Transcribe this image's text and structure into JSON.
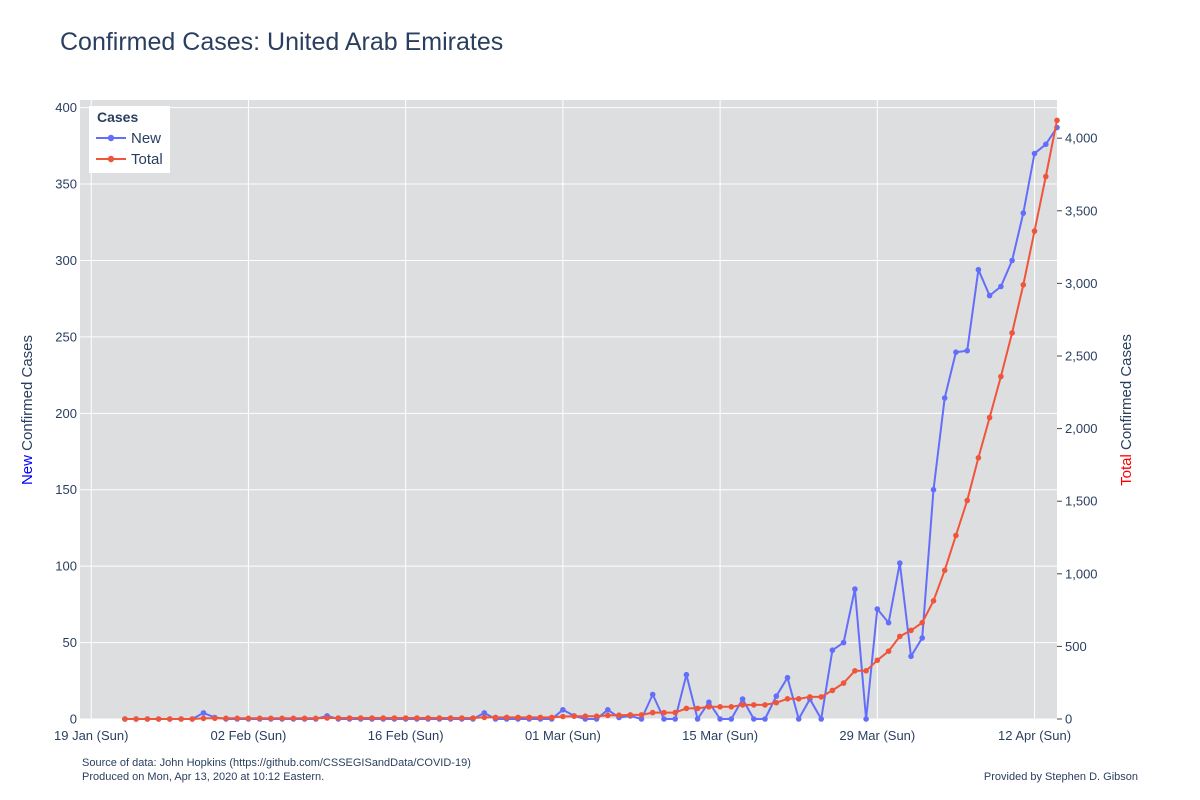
{
  "chart_data": {
    "type": "line",
    "title": "Confirmed Cases: United Arab Emirates",
    "x": [
      "2020-01-22",
      "2020-01-23",
      "2020-01-24",
      "2020-01-25",
      "2020-01-26",
      "2020-01-27",
      "2020-01-28",
      "2020-01-29",
      "2020-01-30",
      "2020-01-31",
      "2020-02-01",
      "2020-02-02",
      "2020-02-03",
      "2020-02-04",
      "2020-02-05",
      "2020-02-06",
      "2020-02-07",
      "2020-02-08",
      "2020-02-09",
      "2020-02-10",
      "2020-02-11",
      "2020-02-12",
      "2020-02-13",
      "2020-02-14",
      "2020-02-15",
      "2020-02-16",
      "2020-02-17",
      "2020-02-18",
      "2020-02-19",
      "2020-02-20",
      "2020-02-21",
      "2020-02-22",
      "2020-02-23",
      "2020-02-24",
      "2020-02-25",
      "2020-02-26",
      "2020-02-27",
      "2020-02-28",
      "2020-02-29",
      "2020-03-01",
      "2020-03-02",
      "2020-03-03",
      "2020-03-04",
      "2020-03-05",
      "2020-03-06",
      "2020-03-07",
      "2020-03-08",
      "2020-03-09",
      "2020-03-10",
      "2020-03-11",
      "2020-03-12",
      "2020-03-13",
      "2020-03-14",
      "2020-03-15",
      "2020-03-16",
      "2020-03-17",
      "2020-03-18",
      "2020-03-19",
      "2020-03-20",
      "2020-03-21",
      "2020-03-22",
      "2020-03-23",
      "2020-03-24",
      "2020-03-25",
      "2020-03-26",
      "2020-03-27",
      "2020-03-28",
      "2020-03-29",
      "2020-03-30",
      "2020-03-31",
      "2020-04-01",
      "2020-04-02",
      "2020-04-03",
      "2020-04-04",
      "2020-04-05",
      "2020-04-06",
      "2020-04-07",
      "2020-04-08",
      "2020-04-09",
      "2020-04-10",
      "2020-04-11",
      "2020-04-12"
    ],
    "x_ticks": [
      {
        "date": "2020-01-19",
        "label": "19 Jan (Sun)"
      },
      {
        "date": "2020-02-02",
        "label": "02 Feb (Sun)"
      },
      {
        "date": "2020-02-16",
        "label": "16 Feb (Sun)"
      },
      {
        "date": "2020-03-01",
        "label": "01 Mar (Sun)"
      },
      {
        "date": "2020-03-15",
        "label": "15 Mar (Sun)"
      },
      {
        "date": "2020-03-29",
        "label": "29 Mar (Sun)"
      },
      {
        "date": "2020-04-12",
        "label": "12 Apr (Sun)"
      }
    ],
    "xlim": [
      "2020-01-18",
      "2020-04-14"
    ],
    "series": [
      {
        "name": "New",
        "axis": "left",
        "color": "#636efa",
        "values": [
          0,
          0,
          0,
          0,
          0,
          0,
          0,
          4,
          1,
          0,
          0,
          0,
          0,
          0,
          0,
          0,
          0,
          0,
          2,
          0,
          0,
          0,
          0,
          0,
          0,
          0,
          0,
          0,
          0,
          0,
          0,
          0,
          4,
          0,
          0,
          0,
          0,
          0,
          0,
          6,
          2,
          0,
          0,
          6,
          1,
          2,
          0,
          16,
          0,
          0,
          29,
          0,
          11,
          0,
          0,
          13,
          0,
          0,
          15,
          27,
          0,
          13,
          0,
          45,
          50,
          85,
          0,
          72,
          63,
          102,
          41,
          53,
          150,
          210,
          240,
          241,
          294,
          277,
          283,
          300,
          331,
          370
        ]
      },
      {
        "name": "Total",
        "axis": "right",
        "color": "#ef553b",
        "values": [
          0,
          0,
          0,
          0,
          0,
          0,
          0,
          4,
          5,
          5,
          5,
          5,
          5,
          5,
          5,
          5,
          5,
          5,
          7,
          7,
          7,
          7,
          7,
          7,
          7,
          7,
          7,
          7,
          7,
          7,
          7,
          7,
          11,
          11,
          11,
          11,
          11,
          11,
          11,
          17,
          19,
          19,
          19,
          25,
          26,
          28,
          28,
          44,
          44,
          44,
          73,
          73,
          84,
          84,
          84,
          97,
          97,
          97,
          112,
          139,
          139,
          152,
          152,
          197,
          247,
          332,
          332,
          404,
          467,
          569,
          610,
          663,
          814,
          1024,
          1264,
          1505,
          1799,
          2076,
          2359,
          2659,
          2990,
          3360
        ]
      }
    ],
    "series_extra_right": [
      {
        "date": "2020-04-13",
        "new": 376,
        "total": 3736
      },
      {
        "date": "2020-04-14",
        "new": 387,
        "total": 4123
      }
    ],
    "y_left": {
      "label_prefix": "New",
      "label_rest": " Confirmed Cases",
      "prefix_color": "#0000ff",
      "ylim": [
        0,
        405
      ],
      "ticks": [
        0,
        50,
        100,
        150,
        200,
        250,
        300,
        350,
        400
      ]
    },
    "y_right": {
      "label_prefix": "Total",
      "label_rest": " Confirmed Cases",
      "prefix_color": "#ff0000",
      "ylim": [
        0,
        4263
      ],
      "ticks": [
        0,
        500,
        1000,
        1500,
        2000,
        2500,
        3000,
        3500,
        4000
      ],
      "tick_labels": [
        "0",
        "500",
        "1,000",
        "1,500",
        "2,000",
        "2,500",
        "3,000",
        "3,500",
        "4,000"
      ]
    },
    "legend": {
      "title": "Cases",
      "placement": "top-left"
    },
    "grid": true
  },
  "footer": {
    "source": "Source of data: John Hopkins (https://github.com/CSSEGISandData/COVID-19)",
    "produced": "Produced on Mon, Apr 13, 2020 at 10:12 Eastern.",
    "credit": "Provided by Stephen D. Gibson"
  },
  "colors": {
    "plot_bg": "#dddee0",
    "grid": "#ffffff",
    "text": "#2a3f5f"
  }
}
